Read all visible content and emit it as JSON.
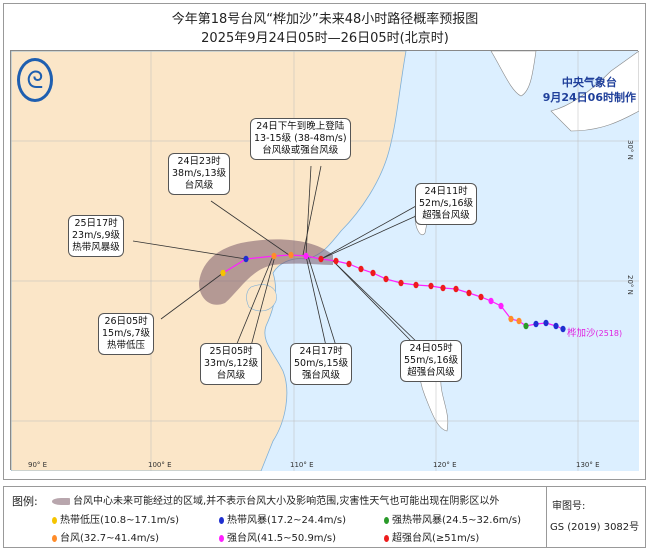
{
  "title": "今年第18号台风“桦加沙”未来48小时路径概率预报图",
  "subtitle": "2025年9月24日05时—26日05时(北京时)",
  "agency": {
    "name": "中央气象台",
    "made": "9月24日06时制作",
    "logo": "CMA logo"
  },
  "typhoon_label": "桦加沙",
  "typhoon_id": "(2518)",
  "lat_ticks": [
    "30° N",
    "20° N"
  ],
  "lon_ticks": [
    "90° E",
    "100° E",
    "110° E",
    "120° E",
    "130° E"
  ],
  "annotations": [
    {
      "lines": [
        "24日下午到晚上登陆",
        "13-15级 (38-48m/s)",
        "台风级或强台风级"
      ]
    },
    {
      "lines": [
        "24日23时",
        "38m/s,13级",
        "台风级"
      ]
    },
    {
      "lines": [
        "24日11时",
        "52m/s,16级",
        "超强台风级"
      ]
    },
    {
      "lines": [
        "25日17时",
        "23m/s,9级",
        "热带风暴级"
      ]
    },
    {
      "lines": [
        "26日05时",
        "15m/s,7级",
        "热带低压"
      ]
    },
    {
      "lines": [
        "25日05时",
        "33m/s,12级",
        "台风级"
      ]
    },
    {
      "lines": [
        "24日17时",
        "50m/s,15级",
        "强台风级"
      ]
    },
    {
      "lines": [
        "24日05时",
        "55m/s,16级",
        "超强台风级"
      ]
    }
  ],
  "legend": {
    "label": "图例:",
    "cone": "台风中心未来可能经过的区域,并不表示台风大小及影响范围,灾害性天气也可能出现在阴影区以外",
    "items": [
      {
        "text": "热带低压(10.8~17.1m/s)",
        "color": "#f5c400"
      },
      {
        "text": "热带风暴(17.2~24.4m/s)",
        "color": "#1f2fd0"
      },
      {
        "text": "强热带风暴(24.5~32.6m/s)",
        "color": "#2a9a2a"
      },
      {
        "text": "台风(32.7~41.4m/s)",
        "color": "#ff8c2a"
      },
      {
        "text": "强台风(41.5~50.9m/s)",
        "color": "#ff20ff"
      },
      {
        "text": "超强台风(≥51m/s)",
        "color": "#ee1c1c"
      }
    ],
    "review_label": "审图号:",
    "review_no": "GS (2019) 3082号"
  },
  "colors": {
    "land": "#fbe6c8",
    "sea": "#dcefff",
    "cone": "#7a5a6a",
    "track": "#ff20ff"
  }
}
